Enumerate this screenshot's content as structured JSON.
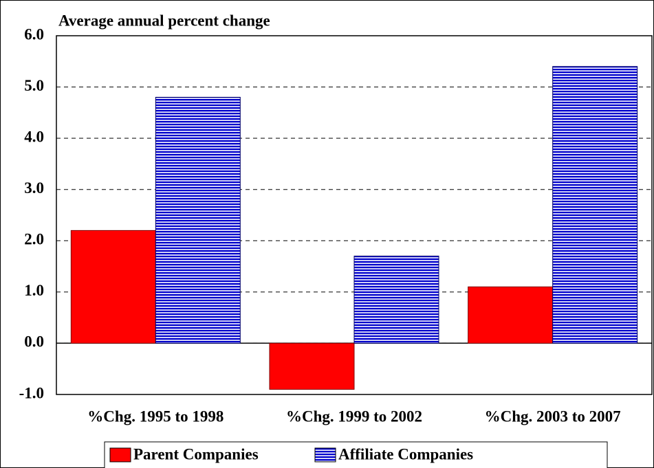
{
  "chart_data": {
    "type": "bar",
    "title": "Average annual percent change",
    "categories": [
      "%Chg. 1995 to 1998",
      "%Chg. 1999 to 2002",
      "%Chg. 2003 to 2007"
    ],
    "series": [
      {
        "name": "Parent Companies",
        "color": "#ff0000",
        "values": [
          2.2,
          -0.9,
          1.1
        ]
      },
      {
        "name": "Affiliate Companies",
        "color": "#0000cc",
        "values": [
          4.8,
          1.7,
          5.4
        ]
      }
    ],
    "ylim": [
      -1,
      6
    ],
    "yticks": [
      {
        "value": -1,
        "label": "-1.0"
      },
      {
        "value": 0,
        "label": "0.0"
      },
      {
        "value": 1,
        "label": "1.0"
      },
      {
        "value": 2,
        "label": "2.0"
      },
      {
        "value": 3,
        "label": "3.0"
      },
      {
        "value": 4,
        "label": "4.0"
      },
      {
        "value": 5,
        "label": "5.0"
      },
      {
        "value": 6,
        "label": "6.0"
      }
    ],
    "grid": true,
    "legend": "bottom"
  }
}
